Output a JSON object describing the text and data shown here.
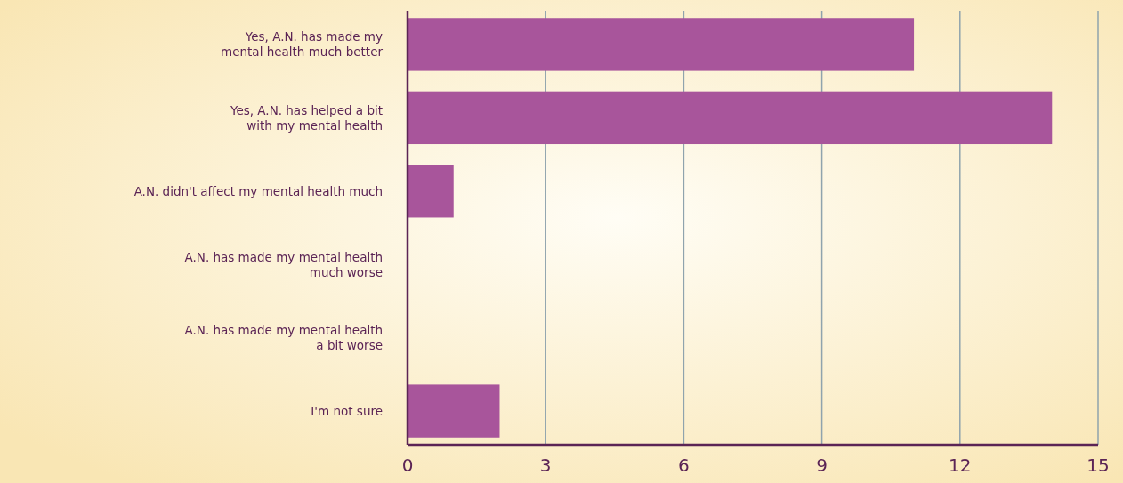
{
  "chart_data": {
    "type": "bar",
    "orientation": "horizontal",
    "categories": [
      "Yes, A.N. has made my\nmental health much better",
      "Yes, A.N. has helped a bit\nwith my mental health",
      "A.N. didn't affect my mental health much",
      "A.N. has made my mental health\nmuch worse",
      "A.N. has made my mental health\na bit worse",
      "I'm not sure"
    ],
    "values": [
      11,
      14,
      1,
      0,
      0,
      2
    ],
    "color": "#a8559b",
    "xlim": [
      0,
      15
    ],
    "xticks": [
      0,
      3,
      6,
      9,
      12,
      15
    ],
    "grid": "x"
  }
}
